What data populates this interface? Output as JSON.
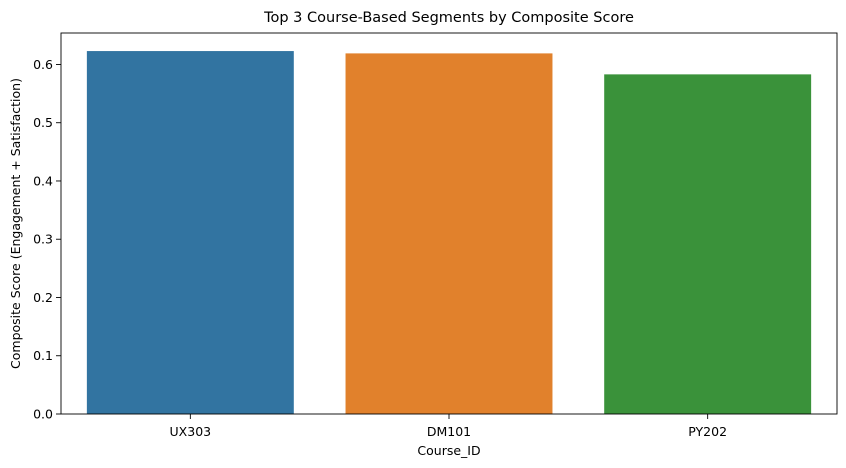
{
  "chart_data": {
    "type": "bar",
    "title": "Top 3 Course-Based Segments by Composite Score",
    "xlabel": "Course_ID",
    "ylabel": "Composite Score (Engagement + Satisfaction)",
    "categories": [
      "UX303",
      "DM101",
      "PY202"
    ],
    "values": [
      0.623,
      0.619,
      0.583
    ],
    "colors": [
      "#3274a1",
      "#e1812c",
      "#3a923a"
    ],
    "ylim": [
      0,
      0.654
    ],
    "yticks": [
      0.0,
      0.1,
      0.2,
      0.3,
      0.4,
      0.5,
      0.6
    ],
    "ytick_labels": [
      "0.0",
      "0.1",
      "0.2",
      "0.3",
      "0.4",
      "0.5",
      "0.6"
    ],
    "grid": false,
    "legend": "none"
  }
}
